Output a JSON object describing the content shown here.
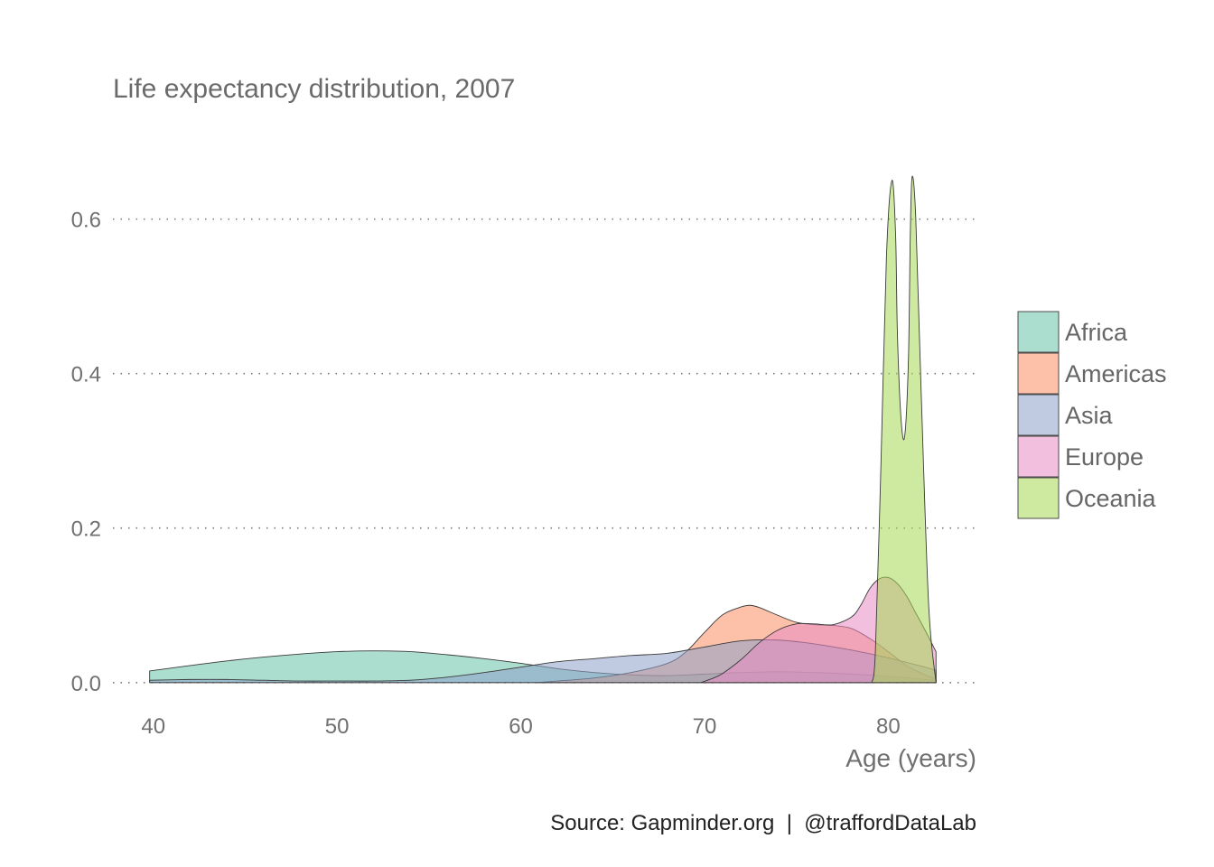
{
  "chart_data": {
    "type": "area",
    "title": "Life expectancy distribution, 2007",
    "xlabel": "Age (years)",
    "ylabel": "",
    "caption": "Source: Gapminder.org  |  @traffordDataLab",
    "xlim": [
      37.8,
      84.8
    ],
    "ylim": [
      -0.04,
      0.72
    ],
    "x_ticks": [
      40,
      50,
      60,
      70,
      80
    ],
    "x_tick_labels": [
      "40",
      "50",
      "60",
      "70",
      "80"
    ],
    "y_ticks": [
      0.0,
      0.2,
      0.4,
      0.6
    ],
    "y_tick_labels": [
      "0.0",
      "0.2",
      "0.4",
      "0.6"
    ],
    "grid": "horizontal dotted",
    "legend_position": "right",
    "series": [
      {
        "name": "Africa",
        "color": "#66c2a5",
        "x": [
          39.8,
          42,
          44,
          46,
          48,
          50,
          52,
          54,
          56,
          58,
          60,
          62,
          64,
          66,
          68,
          70,
          72,
          74,
          76,
          78,
          80,
          82,
          82.6
        ],
        "y": [
          0.015,
          0.022,
          0.028,
          0.033,
          0.037,
          0.04,
          0.041,
          0.04,
          0.036,
          0.031,
          0.025,
          0.018,
          0.013,
          0.01,
          0.009,
          0.011,
          0.013,
          0.014,
          0.013,
          0.011,
          0.008,
          0.004,
          0.003
        ]
      },
      {
        "name": "Americas",
        "color": "#fc8d62",
        "x": [
          60.9,
          62,
          64,
          66,
          68,
          69,
          70,
          71,
          72,
          72.5,
          73,
          74,
          75,
          76,
          77,
          78,
          79,
          80,
          81,
          82,
          82.6
        ],
        "y": [
          0.0,
          0.002,
          0.006,
          0.013,
          0.025,
          0.04,
          0.065,
          0.088,
          0.098,
          0.1,
          0.097,
          0.087,
          0.078,
          0.075,
          0.074,
          0.07,
          0.057,
          0.04,
          0.022,
          0.01,
          0.005
        ]
      },
      {
        "name": "Asia",
        "color": "#8da0cb",
        "x": [
          39.8,
          42,
          44,
          46,
          48,
          50,
          52,
          54,
          56,
          58,
          60,
          62,
          64,
          66,
          68,
          70,
          72,
          74,
          76,
          78,
          80,
          82,
          82.6
        ],
        "y": [
          0.003,
          0.004,
          0.004,
          0.003,
          0.002,
          0.002,
          0.002,
          0.003,
          0.007,
          0.013,
          0.02,
          0.027,
          0.031,
          0.035,
          0.038,
          0.046,
          0.054,
          0.055,
          0.05,
          0.042,
          0.032,
          0.02,
          0.016
        ]
      },
      {
        "name": "Europe",
        "color": "#e78ac3",
        "x": [
          69.8,
          70.5,
          71,
          72,
          73,
          74,
          75,
          76,
          77,
          78,
          78.5,
          79,
          79.5,
          80,
          80.5,
          81,
          81.5,
          82,
          82.6
        ],
        "y": [
          0.0,
          0.006,
          0.012,
          0.03,
          0.052,
          0.068,
          0.076,
          0.076,
          0.075,
          0.085,
          0.1,
          0.122,
          0.134,
          0.136,
          0.128,
          0.112,
          0.09,
          0.068,
          0.04
        ]
      },
      {
        "name": "Oceania",
        "color": "#a6d854",
        "x": [
          79.1,
          79.3,
          79.6,
          79.9,
          80.2,
          80.4,
          80.5,
          80.7,
          80.9,
          81.1,
          81.2,
          81.3,
          81.5,
          81.8,
          82.2,
          82.6
        ],
        "y": [
          0.0,
          0.04,
          0.28,
          0.55,
          0.65,
          0.58,
          0.45,
          0.34,
          0.32,
          0.42,
          0.58,
          0.655,
          0.6,
          0.37,
          0.1,
          0.0
        ]
      }
    ]
  }
}
